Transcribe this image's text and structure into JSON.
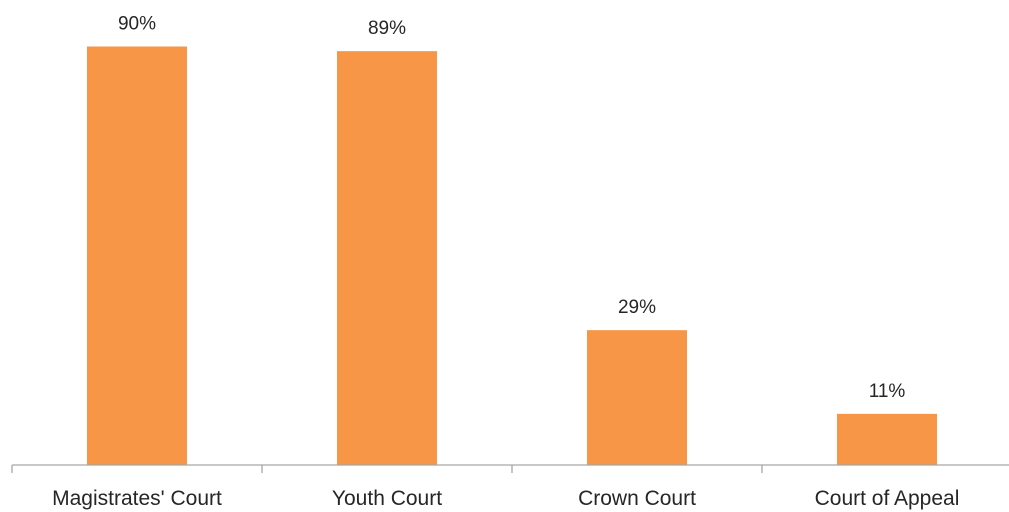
{
  "chart_data": {
    "type": "bar",
    "categories": [
      "Magistrates' Court",
      "Youth Court",
      "Crown Court",
      "Court of Appeal"
    ],
    "values": [
      90,
      89,
      29,
      11
    ],
    "value_labels": [
      "90%",
      "89%",
      "29%",
      "11%"
    ],
    "unit": "%",
    "ylim": [
      0,
      100
    ],
    "grid": false,
    "legend": "none",
    "title": "",
    "xlabel": "",
    "ylabel": "",
    "bar_color": "#F79646",
    "axis_color": "#A6A6A6",
    "text_color": "#262626"
  }
}
